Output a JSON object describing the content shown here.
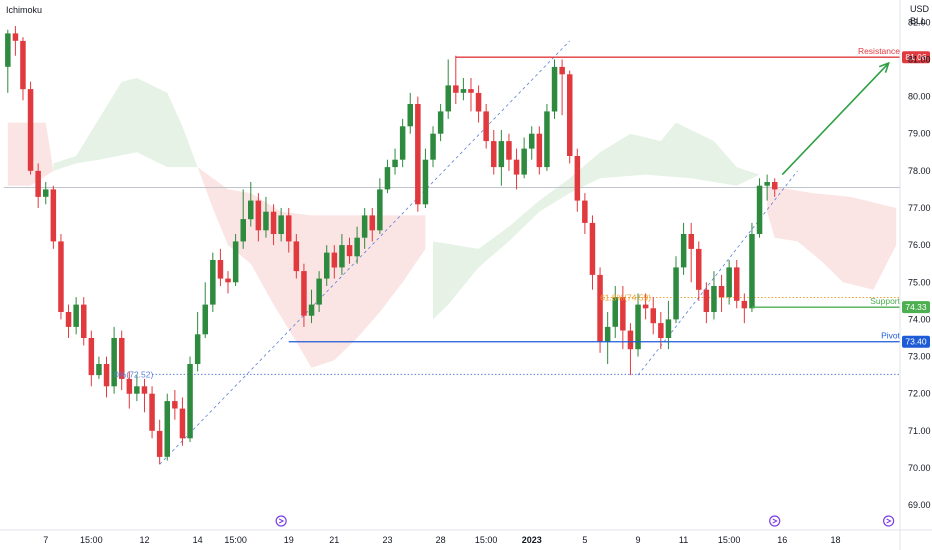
{
  "header": {
    "indicator_name": "Ichimoku",
    "currency": "USD",
    "unit": "BLL"
  },
  "colors": {
    "bull": "#2e8a3e",
    "bear": "#e0393e",
    "resistance": "#e0393e",
    "support": "#4caf50",
    "pivot": "#1e5bd6",
    "fib": "#5b7fd6",
    "fib_dots": "#f0a030",
    "arrow": "#2ea043",
    "cloud_bull": "#e6f2e6",
    "cloud_bear": "#fbe4e4",
    "price_line": "#b8bcc6"
  },
  "chart_data": {
    "type": "candlestick",
    "ylim": [
      68.6,
      82.6
    ],
    "yticks": [
      "82.00",
      "81.00",
      "80.00",
      "79.00",
      "78.00",
      "77.00",
      "76.00",
      "75.00",
      "74.00",
      "73.00",
      "72.00",
      "71.00",
      "70.00",
      "69.00"
    ],
    "ytick_values": [
      82,
      81,
      80,
      79,
      78,
      77,
      76,
      75,
      74,
      73,
      72,
      71,
      70,
      69
    ],
    "xticks": [
      "7",
      "15:00",
      "12",
      "14",
      "15:00",
      "19",
      "21",
      "23",
      "28",
      "15:00",
      "2023",
      "5",
      "9",
      "11",
      "15:00",
      "16",
      "18"
    ],
    "xtick_index": [
      5,
      11,
      18,
      25,
      30,
      37,
      43,
      50,
      57,
      63,
      69,
      76,
      83,
      89,
      95,
      102,
      109
    ],
    "n_bars": 118,
    "candles": [
      [
        80.8,
        81.7,
        81.8,
        80.1
      ],
      [
        81.7,
        81.5,
        81.9,
        81.1
      ],
      [
        81.5,
        80.2,
        81.6,
        79.9
      ],
      [
        80.2,
        78.0,
        80.4,
        77.9
      ],
      [
        78.0,
        77.3,
        78.2,
        77.0
      ],
      [
        77.3,
        77.5,
        77.7,
        77.1
      ],
      [
        77.5,
        76.1,
        77.6,
        75.9
      ],
      [
        76.1,
        74.2,
        76.3,
        74.0
      ],
      [
        74.2,
        73.8,
        74.4,
        73.5
      ],
      [
        73.8,
        74.4,
        74.6,
        73.6
      ],
      [
        74.4,
        73.5,
        74.6,
        73.3
      ],
      [
        73.5,
        72.5,
        73.7,
        72.2
      ],
      [
        72.5,
        72.8,
        73.0,
        72.4
      ],
      [
        72.8,
        72.2,
        73.0,
        71.9
      ],
      [
        72.2,
        73.5,
        73.8,
        72.0
      ],
      [
        73.5,
        72.4,
        73.7,
        72.1
      ],
      [
        72.4,
        72.0,
        72.6,
        71.6
      ],
      [
        72.0,
        72.2,
        72.5,
        71.8
      ],
      [
        72.2,
        72.0,
        72.4,
        71.5
      ],
      [
        72.0,
        71.0,
        72.2,
        70.8
      ],
      [
        71.0,
        70.3,
        71.3,
        70.1
      ],
      [
        70.3,
        71.8,
        72.0,
        70.2
      ],
      [
        71.8,
        71.6,
        72.1,
        71.3
      ],
      [
        71.6,
        70.8,
        71.9,
        70.6
      ],
      [
        70.8,
        72.8,
        73.0,
        70.7
      ],
      [
        72.8,
        73.6,
        74.2,
        72.6
      ],
      [
        73.6,
        74.4,
        75.0,
        73.5
      ],
      [
        74.4,
        75.6,
        75.8,
        74.2
      ],
      [
        75.6,
        75.1,
        75.9,
        74.9
      ],
      [
        75.1,
        75.0,
        75.3,
        74.7
      ],
      [
        75.0,
        76.1,
        76.3,
        74.9
      ],
      [
        76.1,
        76.7,
        77.5,
        75.9
      ],
      [
        76.7,
        77.2,
        77.7,
        76.5
      ],
      [
        77.2,
        76.4,
        77.4,
        76.1
      ],
      [
        76.4,
        76.9,
        77.3,
        76.2
      ],
      [
        76.9,
        76.3,
        77.1,
        76.0
      ],
      [
        76.3,
        76.8,
        77.0,
        76.1
      ],
      [
        76.8,
        76.1,
        77.0,
        75.8
      ],
      [
        76.1,
        75.3,
        76.3,
        75.1
      ],
      [
        75.3,
        74.1,
        75.5,
        73.8
      ],
      [
        74.1,
        74.4,
        74.8,
        73.9
      ],
      [
        74.4,
        75.1,
        75.3,
        74.2
      ],
      [
        75.1,
        75.8,
        76.0,
        74.9
      ],
      [
        75.8,
        75.4,
        76.0,
        75.1
      ],
      [
        75.4,
        76.0,
        76.3,
        75.2
      ],
      [
        76.0,
        75.7,
        76.2,
        75.5
      ],
      [
        75.7,
        76.2,
        76.5,
        75.5
      ],
      [
        76.2,
        76.8,
        77.0,
        75.9
      ],
      [
        76.8,
        76.4,
        77.0,
        76.1
      ],
      [
        76.4,
        77.5,
        77.8,
        76.3
      ],
      [
        77.5,
        78.1,
        78.3,
        77.4
      ],
      [
        78.1,
        78.3,
        78.6,
        77.9
      ],
      [
        78.3,
        79.2,
        79.4,
        78.1
      ],
      [
        79.2,
        79.8,
        80.1,
        79.0
      ],
      [
        79.8,
        77.1,
        80.0,
        76.9
      ],
      [
        77.1,
        78.3,
        78.6,
        77.0
      ],
      [
        78.3,
        79.0,
        79.2,
        78.1
      ],
      [
        79.0,
        79.6,
        79.8,
        78.8
      ],
      [
        79.6,
        80.3,
        81.0,
        79.4
      ],
      [
        80.3,
        80.1,
        81.1,
        79.8
      ],
      [
        80.1,
        80.2,
        80.5,
        79.9
      ],
      [
        80.2,
        80.1,
        80.5,
        79.6
      ],
      [
        80.1,
        79.6,
        80.3,
        79.3
      ],
      [
        79.6,
        78.8,
        79.8,
        78.6
      ],
      [
        78.8,
        78.1,
        79.1,
        77.9
      ],
      [
        78.1,
        78.8,
        79.1,
        77.6
      ],
      [
        78.8,
        78.3,
        79.0,
        78.0
      ],
      [
        78.3,
        77.9,
        78.6,
        77.5
      ],
      [
        77.9,
        78.6,
        78.9,
        77.8
      ],
      [
        78.6,
        79.0,
        79.2,
        78.3
      ],
      [
        79.0,
        78.1,
        79.2,
        77.9
      ],
      [
        78.1,
        79.6,
        79.8,
        78.0
      ],
      [
        79.6,
        80.8,
        81.0,
        79.4
      ],
      [
        80.8,
        80.6,
        81.0,
        79.5
      ],
      [
        80.6,
        78.4,
        80.7,
        78.2
      ],
      [
        78.4,
        77.2,
        78.6,
        76.9
      ],
      [
        77.2,
        76.6,
        77.4,
        76.3
      ],
      [
        76.6,
        75.2,
        76.8,
        74.8
      ],
      [
        75.2,
        73.4,
        75.4,
        73.1
      ],
      [
        73.4,
        73.8,
        74.2,
        72.8
      ],
      [
        73.8,
        74.6,
        74.9,
        73.5
      ],
      [
        74.6,
        73.7,
        74.9,
        73.2
      ],
      [
        73.7,
        73.2,
        73.9,
        72.5
      ],
      [
        73.2,
        74.4,
        74.7,
        73.0
      ],
      [
        74.4,
        74.3,
        74.7,
        74.0
      ],
      [
        74.3,
        73.9,
        74.6,
        73.6
      ],
      [
        73.9,
        73.5,
        74.2,
        73.2
      ],
      [
        73.5,
        74.0,
        74.5,
        73.2
      ],
      [
        74.0,
        75.4,
        75.7,
        73.9
      ],
      [
        75.4,
        76.3,
        76.6,
        75.2
      ],
      [
        76.3,
        75.9,
        76.6,
        75.0
      ],
      [
        75.9,
        74.8,
        76.1,
        74.5
      ],
      [
        74.8,
        74.2,
        75.0,
        73.9
      ],
      [
        74.2,
        74.9,
        75.3,
        74.0
      ],
      [
        74.9,
        74.6,
        75.2,
        74.2
      ],
      [
        74.6,
        75.4,
        75.6,
        74.4
      ],
      [
        75.4,
        74.5,
        75.6,
        74.3
      ],
      [
        74.5,
        74.3,
        74.7,
        73.9
      ],
      [
        74.3,
        76.3,
        76.6,
        74.2
      ],
      [
        76.3,
        77.6,
        77.8,
        76.2
      ],
      [
        77.6,
        77.7,
        77.9,
        77.2
      ],
      [
        77.7,
        77.5,
        77.8,
        77.3
      ]
    ],
    "levels": [
      {
        "name": "Resistance",
        "value": 81.06,
        "label": "Resistance",
        "price": "81.06"
      },
      {
        "name": "Support",
        "value": 74.33,
        "label": "Support",
        "price": "74.33"
      },
      {
        "name": "Pivot",
        "value": 73.4,
        "label": "Pivot",
        "price": "73.40"
      }
    ],
    "fib_labels": [
      {
        "text": "0%(72.52)",
        "value": 72.52
      },
      {
        "text": "61.8%(74.59)",
        "value": 74.59
      }
    ],
    "current_price": 77.55,
    "projection": {
      "from_bar": 102,
      "from_value": 77.9,
      "to_bar": 116,
      "to_value": 80.9
    }
  }
}
